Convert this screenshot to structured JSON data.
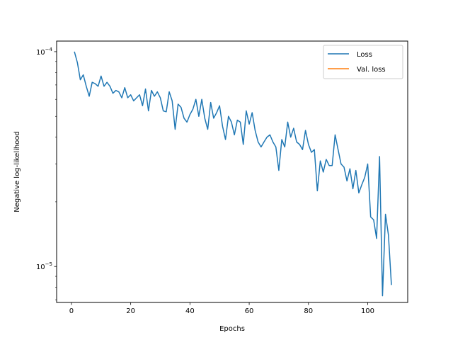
{
  "chart_data": {
    "type": "line",
    "title": "",
    "xlabel": "Epochs",
    "ylabel": "Negative log-likelihood",
    "xlim": [
      -5,
      113.5
    ],
    "ylim": [
      6.8e-06,
      0.000112
    ],
    "yscale": "log",
    "grid": false,
    "legend_position": "top-right",
    "x_ticks": [
      0,
      20,
      40,
      60,
      80,
      100
    ],
    "x_tick_labels": [
      "0",
      "20",
      "40",
      "60",
      "80",
      "100"
    ],
    "y_ticks": [
      1e-05,
      0.0001
    ],
    "y_tick_labels": [
      {
        "base": "10",
        "exp": "−5"
      },
      {
        "base": "10",
        "exp": "−4"
      }
    ],
    "series": [
      {
        "name": "Loss",
        "color": "#1f77b4",
        "x": [
          1,
          2,
          3,
          4,
          5,
          6,
          7,
          8,
          9,
          10,
          11,
          12,
          13,
          14,
          15,
          16,
          17,
          18,
          19,
          20,
          21,
          22,
          23,
          24,
          25,
          26,
          27,
          28,
          29,
          30,
          31,
          32,
          33,
          34,
          35,
          36,
          37,
          38,
          39,
          40,
          41,
          42,
          43,
          44,
          45,
          46,
          47,
          48,
          49,
          50,
          51,
          52,
          53,
          54,
          55,
          56,
          57,
          58,
          59,
          60,
          61,
          62,
          63,
          64,
          65,
          66,
          67,
          68,
          69,
          70,
          71,
          72,
          73,
          74,
          75,
          76,
          77,
          78,
          79,
          80,
          81,
          82,
          83,
          84,
          85,
          86,
          87,
          88,
          89,
          90,
          91,
          92,
          93,
          94,
          95,
          96,
          97,
          98,
          99,
          100,
          101,
          102,
          103,
          104,
          105,
          106,
          107,
          108
        ],
        "values": [
          0.0001,
          8.9e-05,
          7.4e-05,
          7.8e-05,
          6.9e-05,
          6.2e-05,
          7.2e-05,
          7.1e-05,
          6.9e-05,
          7.7e-05,
          6.9e-05,
          7.2e-05,
          6.9e-05,
          6.4e-05,
          6.6e-05,
          6.5e-05,
          6.1e-05,
          6.8e-05,
          6.1e-05,
          6.3e-05,
          5.9e-05,
          6.1e-05,
          6.3e-05,
          5.6e-05,
          6.7e-05,
          5.3e-05,
          6.6e-05,
          6.2e-05,
          6.5e-05,
          6.1e-05,
          5.3e-05,
          5.25e-05,
          6.5e-05,
          5.9e-05,
          4.35e-05,
          5.7e-05,
          5.5e-05,
          4.9e-05,
          4.7e-05,
          5.1e-05,
          5.4e-05,
          6e-05,
          5e-05,
          6e-05,
          4.9e-05,
          4.35e-05,
          5.8e-05,
          4.9e-05,
          5.2e-05,
          5.6e-05,
          4.5e-05,
          3.9e-05,
          5e-05,
          4.7e-05,
          4.1e-05,
          4.8e-05,
          4.7e-05,
          3.7e-05,
          5.3e-05,
          4.6e-05,
          5.2e-05,
          4.3e-05,
          3.8e-05,
          3.6e-05,
          3.8e-05,
          4e-05,
          4.1e-05,
          3.8e-05,
          3.6e-05,
          2.8e-05,
          3.9e-05,
          3.6e-05,
          4.7e-05,
          4e-05,
          4.4e-05,
          3.8e-05,
          3.7e-05,
          3.5e-05,
          4.3e-05,
          3.7e-05,
          3.4e-05,
          3.5e-05,
          2.25e-05,
          3.1e-05,
          2.75e-05,
          3.15e-05,
          2.95e-05,
          2.95e-05,
          4.1e-05,
          3.5e-05,
          3e-05,
          2.9e-05,
          2.5e-05,
          2.85e-05,
          2.3e-05,
          2.8e-05,
          2.2e-05,
          2.4e-05,
          2.6e-05,
          3e-05,
          1.7e-05,
          1.65e-05,
          1.35e-05,
          3.25e-05,
          7.3e-06,
          1.75e-05,
          1.4e-05,
          8.2e-06
        ]
      },
      {
        "name": "Val. loss",
        "color": "#ff7f0e",
        "x": [],
        "values": []
      }
    ]
  }
}
